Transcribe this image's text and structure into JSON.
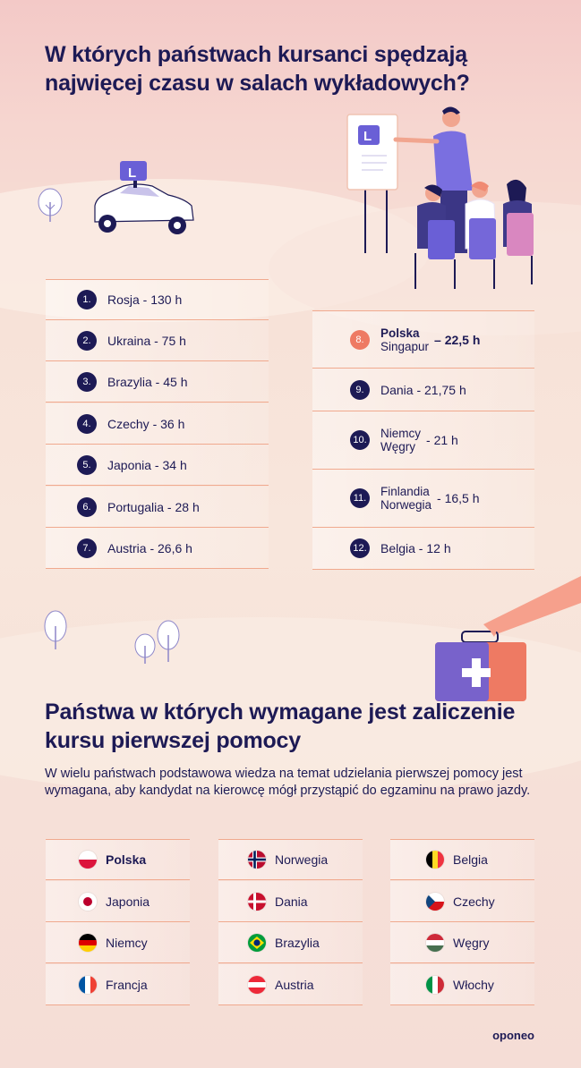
{
  "title_top": "W których państwach kursanci spędzają najwięcej czasu w salach wykładowych?",
  "title_bottom": "Państwa w których wymagane jest zaliczenie kursu pierwszej pomocy",
  "description": "W wielu państwach podstawowa wiedza na temat udzielania pierwszej pomocy jest wymagana, aby kandydat na kierowcę mógł przystąpić do egzaminu na prawo jazdy.",
  "sign_letter": "L",
  "brand": "oponeo",
  "ranking_left": [
    {
      "num": "1.",
      "text": "Rosja - 130 h"
    },
    {
      "num": "2.",
      "text": "Ukraina - 75 h"
    },
    {
      "num": "3.",
      "text": "Brazylia - 45 h"
    },
    {
      "num": "4.",
      "text": "Czechy - 36 h"
    },
    {
      "num": "5.",
      "text": "Japonia - 34 h"
    },
    {
      "num": "6.",
      "text": "Portugalia - 28 h"
    },
    {
      "num": "7.",
      "text": "Austria - 26,6 h"
    }
  ],
  "ranking_right": {
    "r8": {
      "num": "8.",
      "line1": "Polska",
      "line2": "Singapur",
      "value": "– 22,5 h"
    },
    "r9": {
      "num": "9.",
      "text": "Dania - 21,75 h"
    },
    "r10": {
      "num": "10.",
      "line1": "Niemcy",
      "line2": "Węgry",
      "value": "- 21 h"
    },
    "r11": {
      "num": "11.",
      "line1": "Finlandia",
      "line2": "Norwegia",
      "value": "- 16,5 h"
    },
    "r12": {
      "num": "12.",
      "text": "Belgia - 12 h"
    }
  },
  "countries_col1": [
    "Polska",
    "Japonia",
    "Niemcy",
    "Francja"
  ],
  "countries_col2": [
    "Norwegia",
    "Dania",
    "Brazylia",
    "Austria"
  ],
  "countries_col3": [
    "Belgia",
    "Czechy",
    "Węgry",
    "Włochy"
  ],
  "colors": {
    "navy": "#1d1a55",
    "accent": "#ee7a63",
    "line": "#f0a98e"
  }
}
